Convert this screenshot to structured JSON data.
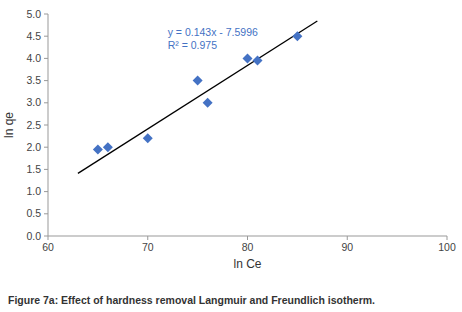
{
  "chart_data": {
    "type": "scatter",
    "x_label": "ln Ce",
    "y_label": "ln qe",
    "caption": "Figure 7a: Effect of hardness removal Langmuir and Freundlich isotherm.",
    "series": [
      {
        "type": "scatter",
        "color": "#4472C4",
        "marker": "diamond",
        "x": [
          65,
          66,
          70,
          75,
          76,
          80,
          81,
          85
        ],
        "values": [
          1.95,
          2.0,
          2.2,
          3.5,
          3.0,
          4.0,
          3.95,
          4.5
        ]
      },
      {
        "type": "line",
        "color": "black",
        "line_style": "solid",
        "x": [
          63,
          87
        ],
        "values": [
          1.4094,
          4.8414
        ]
      }
    ],
    "annotations": [
      {
        "text": "y = 0.143x - 7.5996",
        "x": 72,
        "y": 4.6,
        "color": "#4472C4"
      },
      {
        "text": "R² = 0.975",
        "x": 72,
        "y": 4.3,
        "color": "#4472C4"
      }
    ],
    "xlim": [
      60,
      100
    ],
    "ylim": [
      0,
      5
    ],
    "xticks": [
      60,
      70,
      80,
      90,
      100
    ],
    "yticks": [
      {
        "value": 0,
        "label": "0.0"
      },
      0.5,
      {
        "value": 1.0,
        "label": "1.0"
      },
      1.5,
      {
        "value": 2.0,
        "label": "2.0"
      },
      2.5,
      {
        "value": 3.0,
        "label": "3.0"
      },
      3.5,
      {
        "value": 4.0,
        "label": "4.0"
      },
      4.5,
      {
        "value": 5.0,
        "label": "5.0"
      }
    ],
    "grid": false
  }
}
